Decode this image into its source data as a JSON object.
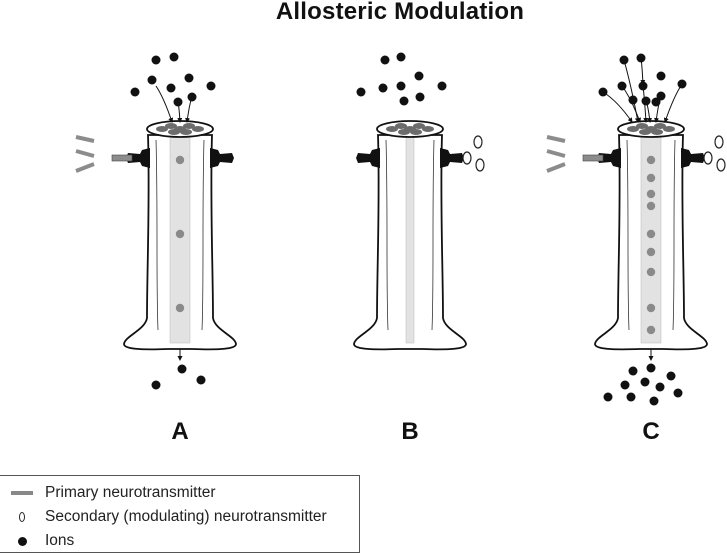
{
  "title": "Allosteric Modulation",
  "panels": [
    {
      "id": "A",
      "label": "A"
    },
    {
      "id": "B",
      "label": "B"
    },
    {
      "id": "C",
      "label": "C"
    }
  ],
  "legend": {
    "items": [
      {
        "symbol": "gray-bar",
        "label": "Primary neurotransmitter"
      },
      {
        "symbol": "open-circle",
        "label": "Secondary (modulating) neurotransmitter"
      },
      {
        "symbol": "black-dot",
        "label": "Ions"
      }
    ]
  },
  "colors": {
    "ion": "#111111",
    "channel_fill": "#ffffff",
    "channel_outline": "#111111",
    "pore": "#e2e2e2",
    "pore_ion": "#8a8a8a",
    "primary_neurotransmitter": "#8c8c8c"
  }
}
